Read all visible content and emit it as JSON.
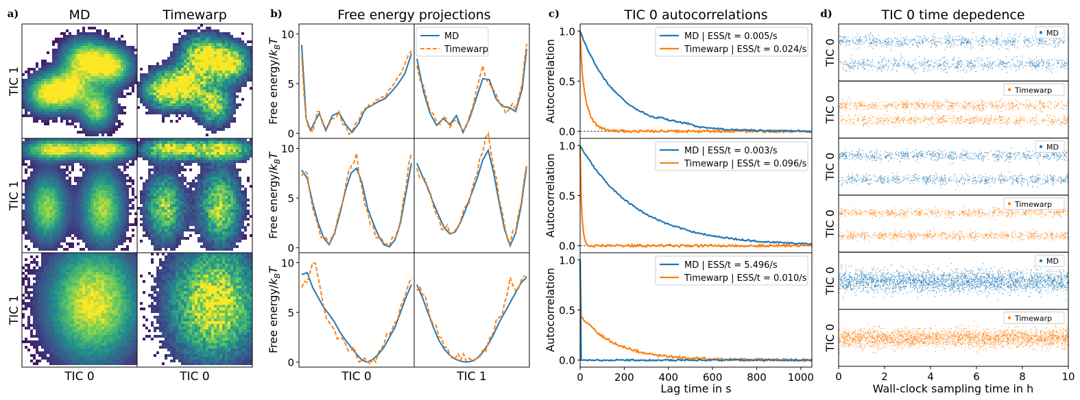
{
  "colors": {
    "md": "#1f77b4",
    "timewarp": "#ff7f0e"
  },
  "panels": {
    "a": {
      "letter": "a)",
      "col_titles": [
        "MD",
        "Timewarp"
      ],
      "ylabel": "TIC 1",
      "xlabel": "TIC 0",
      "rows": [
        {
          "blobs": [
            [
              0.55,
              0.32,
              0.13,
              0.12,
              1.0
            ],
            [
              0.78,
              0.38,
              0.12,
              0.11,
              0.95
            ],
            [
              0.22,
              0.62,
              0.12,
              0.11,
              1.0
            ],
            [
              0.42,
              0.58,
              0.11,
              0.11,
              0.9
            ],
            [
              0.65,
              0.75,
              0.1,
              0.12,
              0.85
            ]
          ]
        },
        {
          "blobs": [
            [
              0.28,
              0.1,
              0.17,
              0.06,
              1.0
            ],
            [
              0.72,
              0.1,
              0.17,
              0.06,
              1.0
            ],
            [
              0.22,
              0.62,
              0.11,
              0.2,
              0.8
            ],
            [
              0.7,
              0.62,
              0.12,
              0.22,
              0.85
            ]
          ]
        },
        {
          "blobs": [
            [
              0.62,
              0.45,
              0.26,
              0.34,
              1.0
            ]
          ]
        }
      ]
    },
    "b": {
      "letter": "b)",
      "title": "Free energy projections",
      "ylabel": "Free energy/",
      "ylabel_math": "k",
      "ylabel_sub": "B",
      "ylabel_T": "T",
      "xlabels": [
        "TIC 0",
        "TIC 1"
      ],
      "yticks": [
        0,
        5,
        10
      ],
      "ylim": [
        -0.5,
        11
      ],
      "legend": [
        "MD",
        "Timewarp"
      ],
      "profiles": [
        [
          {
            "x": [
              0.0,
              0.04,
              0.08,
              0.12,
              0.16,
              0.22,
              0.28,
              0.34,
              0.4,
              0.46,
              0.52,
              0.58,
              0.64,
              0.7,
              0.76,
              0.82,
              0.88,
              0.94,
              1.0
            ],
            "y": [
              8.9,
              1.5,
              0.3,
              1.2,
              2.0,
              0.3,
              1.8,
              2.1,
              0.9,
              0.1,
              1.0,
              2.5,
              2.8,
              3.2,
              3.5,
              4.2,
              5.0,
              6.0,
              8.0
            ]
          },
          {
            "x": [
              0.0,
              0.04,
              0.08,
              0.12,
              0.16,
              0.22,
              0.28,
              0.34,
              0.4,
              0.46,
              0.52,
              0.58,
              0.64,
              0.7,
              0.76,
              0.82,
              0.88,
              0.94,
              1.0
            ],
            "y": [
              7.8,
              1.6,
              0.5,
              1.0,
              2.2,
              0.5,
              1.5,
              2.2,
              0.8,
              0.2,
              1.3,
              2.3,
              2.7,
              3.4,
              3.6,
              4.6,
              5.7,
              7.0,
              8.3
            ]
          }
        ],
        [
          {
            "x": [
              0.0,
              0.06,
              0.12,
              0.18,
              0.24,
              0.3,
              0.36,
              0.42,
              0.48,
              0.54,
              0.6,
              0.66,
              0.72,
              0.78,
              0.84,
              0.9,
              0.96,
              1.0
            ],
            "y": [
              7.5,
              4.2,
              2.0,
              0.8,
              1.5,
              0.9,
              1.8,
              0.1,
              1.5,
              3.5,
              5.5,
              5.4,
              3.5,
              2.7,
              2.6,
              2.2,
              4.5,
              8.5
            ]
          },
          {
            "x": [
              0.0,
              0.06,
              0.12,
              0.18,
              0.24,
              0.3,
              0.36,
              0.42,
              0.48,
              0.54,
              0.6,
              0.66,
              0.72,
              0.78,
              0.84,
              0.9,
              0.96,
              1.0
            ],
            "y": [
              6.8,
              4.8,
              2.3,
              1.1,
              1.7,
              0.6,
              1.4,
              0.3,
              1.8,
              4.2,
              6.8,
              5.0,
              4.0,
              2.9,
              2.4,
              2.4,
              5.0,
              9.0
            ]
          }
        ],
        [
          {
            "x": [
              0.0,
              0.05,
              0.1,
              0.15,
              0.2,
              0.25,
              0.3,
              0.35,
              0.4,
              0.45,
              0.5,
              0.55,
              0.6,
              0.65,
              0.7,
              0.75,
              0.8,
              0.85,
              0.9,
              0.95,
              1.0
            ],
            "y": [
              7.8,
              7.0,
              4.5,
              2.5,
              1.0,
              0.3,
              1.5,
              3.5,
              5.8,
              7.5,
              8.0,
              6.5,
              4.0,
              2.5,
              1.2,
              0.3,
              0.1,
              0.8,
              2.5,
              5.5,
              8.5
            ]
          },
          {
            "x": [
              0.0,
              0.05,
              0.1,
              0.15,
              0.2,
              0.25,
              0.3,
              0.35,
              0.4,
              0.45,
              0.5,
              0.55,
              0.6,
              0.65,
              0.7,
              0.75,
              0.8,
              0.85,
              0.9,
              0.95,
              1.0
            ],
            "y": [
              7.2,
              7.5,
              4.0,
              2.2,
              1.2,
              0.4,
              1.3,
              3.8,
              6.2,
              8.2,
              9.5,
              6.0,
              3.6,
              2.2,
              1.0,
              0.4,
              0.2,
              1.0,
              2.8,
              6.0,
              9.5
            ]
          }
        ],
        [
          {
            "x": [
              0.0,
              0.05,
              0.1,
              0.15,
              0.2,
              0.25,
              0.3,
              0.35,
              0.4,
              0.45,
              0.5,
              0.55,
              0.6,
              0.65,
              0.7,
              0.75,
              0.8,
              0.85,
              0.9,
              0.95,
              1.0
            ],
            "y": [
              8.5,
              7.2,
              6.0,
              4.5,
              3.2,
              2.0,
              1.4,
              1.6,
              2.6,
              4.0,
              5.5,
              7.0,
              8.8,
              9.8,
              7.5,
              4.5,
              1.8,
              0.2,
              1.5,
              4.2,
              8.2
            ]
          },
          {
            "x": [
              0.0,
              0.05,
              0.1,
              0.15,
              0.2,
              0.25,
              0.3,
              0.35,
              0.4,
              0.45,
              0.5,
              0.55,
              0.6,
              0.65,
              0.7,
              0.75,
              0.8,
              0.85,
              0.9,
              0.95,
              1.0
            ],
            "y": [
              8.0,
              7.0,
              5.8,
              4.2,
              3.0,
              1.8,
              1.5,
              1.8,
              2.8,
              4.3,
              5.8,
              7.5,
              9.5,
              11.5,
              8.0,
              4.8,
              2.2,
              0.4,
              1.7,
              4.5,
              8.4
            ]
          }
        ],
        [
          {
            "x": [
              0.0,
              0.05,
              0.1,
              0.15,
              0.2,
              0.25,
              0.3,
              0.35,
              0.4,
              0.45,
              0.5,
              0.55,
              0.6,
              0.65,
              0.7,
              0.75,
              0.8,
              0.85,
              0.9,
              0.95,
              1.0
            ],
            "y": [
              8.8,
              9.0,
              7.5,
              6.5,
              5.5,
              4.8,
              4.0,
              3.0,
              2.2,
              1.5,
              0.8,
              0.2,
              0.0,
              0.3,
              0.8,
              1.5,
              2.5,
              3.5,
              5.0,
              6.5,
              7.8
            ]
          },
          {
            "x": [
              0.0,
              0.05,
              0.1,
              0.15,
              0.2,
              0.25,
              0.3,
              0.35,
              0.4,
              0.45,
              0.5,
              0.55,
              0.6,
              0.65,
              0.7,
              0.75,
              0.8,
              0.85,
              0.9,
              0.95,
              1.0
            ],
            "y": [
              7.5,
              8.0,
              10.0,
              8.5,
              5.5,
              4.0,
              3.2,
              2.5,
              1.8,
              1.2,
              0.6,
              0.2,
              0.1,
              0.4,
              1.0,
              1.8,
              2.8,
              4.0,
              5.6,
              7.0,
              8.5
            ]
          }
        ],
        [
          {
            "x": [
              0.0,
              0.05,
              0.1,
              0.15,
              0.2,
              0.25,
              0.3,
              0.35,
              0.4,
              0.45,
              0.5,
              0.55,
              0.6,
              0.65,
              0.7,
              0.75,
              0.8,
              0.85,
              0.9,
              0.95,
              1.0
            ],
            "y": [
              7.8,
              6.5,
              5.0,
              3.5,
              2.2,
              1.3,
              0.7,
              0.3,
              0.1,
              0.0,
              0.1,
              0.4,
              1.0,
              1.8,
              2.8,
              4.0,
              5.0,
              6.0,
              7.0,
              8.0,
              8.5
            ]
          },
          {
            "x": [
              0.0,
              0.05,
              0.1,
              0.15,
              0.2,
              0.25,
              0.3,
              0.35,
              0.4,
              0.45,
              0.5,
              0.55,
              0.6,
              0.65,
              0.7,
              0.75,
              0.8,
              0.85,
              0.9,
              0.95,
              1.0
            ],
            "y": [
              7.2,
              6.8,
              5.5,
              3.8,
              2.5,
              1.5,
              0.8,
              0.4,
              0.2,
              0.1,
              0.2,
              0.5,
              1.2,
              2.0,
              3.0,
              4.5,
              6.0,
              8.5,
              7.2,
              8.2,
              8.6
            ]
          }
        ]
      ]
    },
    "c": {
      "letter": "c)",
      "title": "TIC 0 autocorrelations",
      "ylabel": "Autocorrelation",
      "xlabel": "Lag time in s",
      "xticks": [
        0,
        200,
        400,
        600,
        800,
        1000
      ],
      "yticks": [
        0.0,
        0.5,
        1.0
      ],
      "xlim": [
        0,
        1050
      ],
      "ylim": [
        -0.07,
        1.07
      ],
      "rows": [
        {
          "legend": [
            "MD | ESS/t = 0.005/s",
            "Timewarp | ESS/t = 0.024/s"
          ],
          "md_tau": 170,
          "tw_tau": 32,
          "tw_amp": 0.68,
          "md_amp": 1.0,
          "md_tail": 0.0
        },
        {
          "legend": [
            "MD | ESS/t = 0.003/s",
            "Timewarp | ESS/t = 0.096/s"
          ],
          "md_tau": 260,
          "tw_tau": 8,
          "tw_amp": 0.9,
          "md_amp": 1.0,
          "md_tail": 0.0
        },
        {
          "legend": [
            "MD | ESS/t = 5.496/s",
            "Timewarp | ESS/t = 0.010/s"
          ],
          "md_tau": 1,
          "tw_tau": 160,
          "tw_amp": 0.45,
          "md_amp": 1.0,
          "md_tail": 0.0
        }
      ]
    },
    "d": {
      "letter": "d)",
      "title": "TIC 0 time depedence",
      "ylabel": "TIC 0",
      "xlabel": "Wall-clock sampling time in h",
      "xticks": [
        0,
        2,
        4,
        6,
        8,
        10
      ],
      "xlim": [
        0,
        10
      ],
      "rows": [
        {
          "series": "md",
          "label": "MD",
          "bands": [
            [
              0.3,
              0.1
            ],
            [
              0.7,
              0.1
            ]
          ]
        },
        {
          "series": "timewarp",
          "label": "Timewarp",
          "bands": [
            [
              0.42,
              0.08
            ],
            [
              0.68,
              0.08
            ]
          ]
        },
        {
          "series": "md",
          "label": "MD",
          "bands": [
            [
              0.3,
              0.08
            ],
            [
              0.72,
              0.08
            ]
          ]
        },
        {
          "series": "timewarp",
          "label": "Timewarp",
          "bands": [
            [
              0.3,
              0.07
            ],
            [
              0.7,
              0.07
            ]
          ]
        },
        {
          "series": "md",
          "label": "MD",
          "bands": [
            [
              0.5,
              0.18
            ]
          ]
        },
        {
          "series": "timewarp",
          "label": "Timewarp",
          "bands": [
            [
              0.5,
              0.15
            ]
          ]
        }
      ]
    }
  },
  "chart_data": [
    {
      "type": "heatmap",
      "title": "",
      "column_titles": [
        "MD",
        "Timewarp"
      ],
      "xlabel": "TIC 0",
      "ylabel": "TIC 1",
      "grid": false
    },
    {
      "type": "line",
      "title": "Free energy projections",
      "xlabel": "TIC 0 / TIC 1",
      "ylabel": "Free energy/kBT",
      "ylim": [
        0,
        11
      ],
      "series": [
        {
          "name": "MD"
        },
        {
          "name": "Timewarp"
        }
      ],
      "legend": "top-right"
    },
    {
      "type": "line",
      "title": "TIC 0 autocorrelations",
      "xlabel": "Lag time in s",
      "ylabel": "Autocorrelation",
      "xlim": [
        0,
        1050
      ],
      "ylim": [
        0,
        1
      ],
      "series": [
        {
          "name": "MD | ESS/t = 0.005/s"
        },
        {
          "name": "Timewarp | ESS/t = 0.024/s"
        },
        {
          "name": "MD | ESS/t = 0.003/s"
        },
        {
          "name": "Timewarp | ESS/t = 0.096/s"
        },
        {
          "name": "MD | ESS/t = 5.496/s"
        },
        {
          "name": "Timewarp | ESS/t = 0.010/s"
        }
      ]
    },
    {
      "type": "scatter",
      "title": "TIC 0 time depedence",
      "xlabel": "Wall-clock sampling time in h",
      "ylabel": "TIC 0",
      "xlim": [
        0,
        10
      ],
      "series": [
        {
          "name": "MD"
        },
        {
          "name": "Timewarp"
        }
      ]
    }
  ]
}
